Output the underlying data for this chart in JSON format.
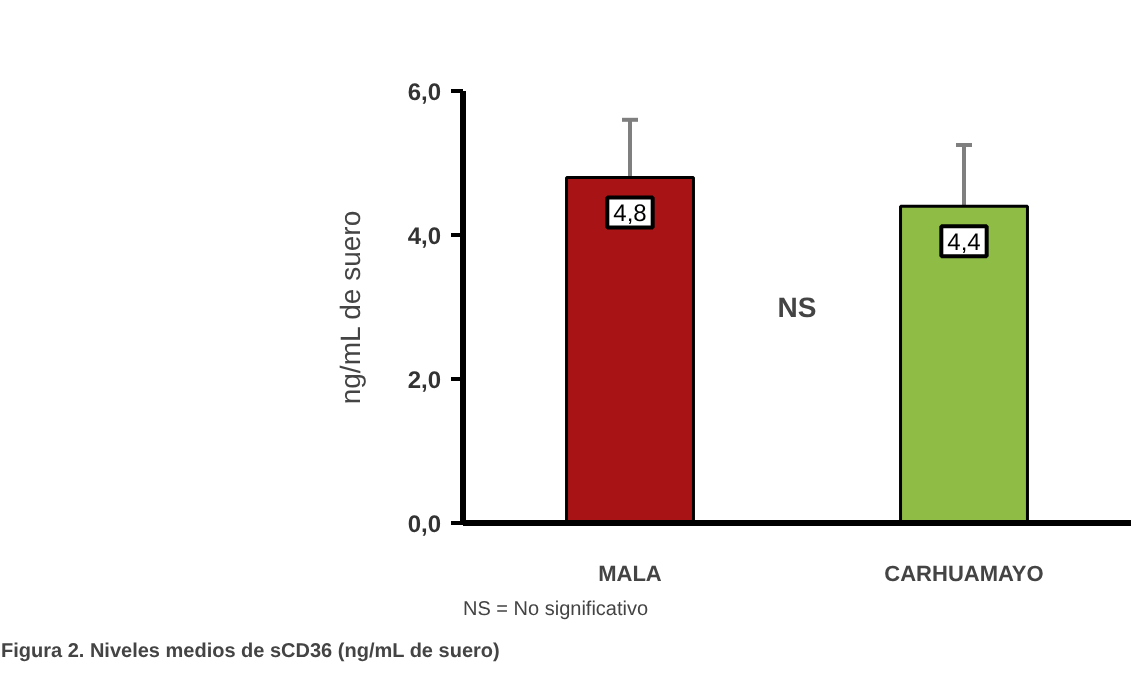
{
  "chart_data": {
    "type": "bar",
    "title": "Figura 2.  Niveles medios de sCD36 (ng/mL de suero)",
    "ylabel": "ng/mL de suero",
    "categories": [
      "MALA",
      "CARHUAMAYO"
    ],
    "values": [
      4.8,
      4.4
    ],
    "colors": [
      "#a81416",
      "#8fbc45"
    ],
    "errors": [
      [
        4.8,
        5.6
      ],
      [
        4.4,
        5.25
      ]
    ],
    "value_labels": [
      "4,8",
      "4,4"
    ],
    "ylim": [
      0,
      6
    ],
    "yticks": [
      {
        "value": 0,
        "label": "0,0"
      },
      {
        "value": 2,
        "label": "2,0"
      },
      {
        "value": 4,
        "label": "4,0"
      },
      {
        "value": 6,
        "label": "6,0"
      }
    ],
    "annotations": [
      "NS",
      "NS = No significativo"
    ],
    "grid": false
  }
}
